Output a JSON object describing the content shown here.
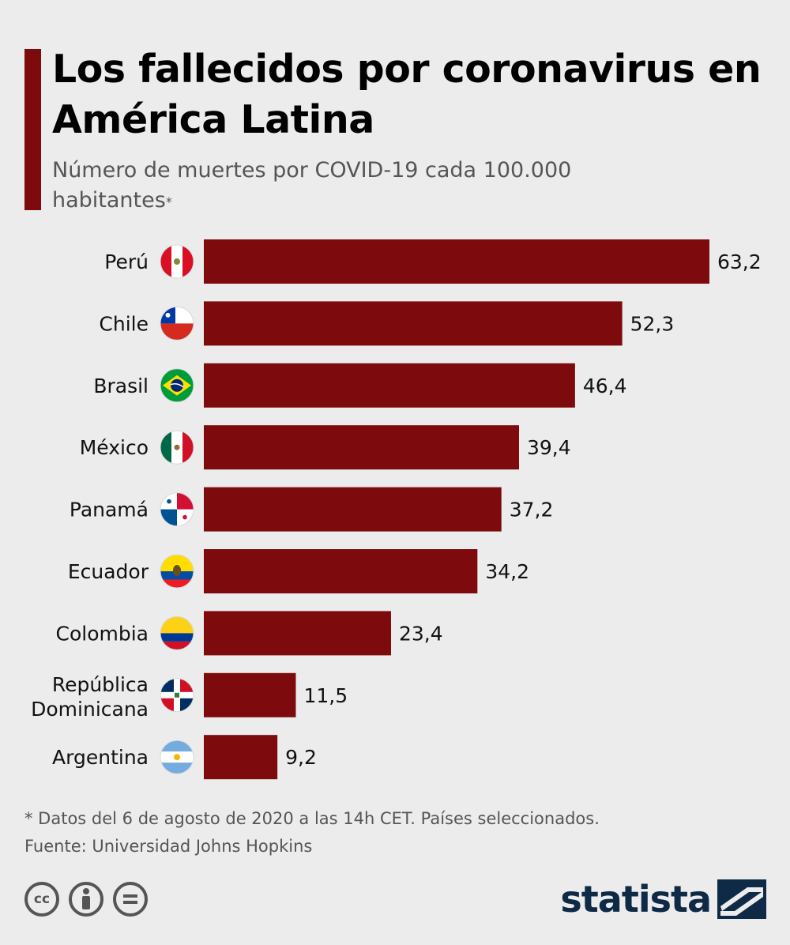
{
  "header": {
    "title": "Los fallecidos por coronavirus en América Latina",
    "subtitle": "Número de muertes por COVID-19 cada 100.000 habitantes",
    "subtitle_mark": "*"
  },
  "chart_data": {
    "type": "bar",
    "orientation": "horizontal",
    "title": "Los fallecidos por coronavirus en América Latina",
    "ylabel": "Número de muertes por COVID-19 cada 100.000 habitantes",
    "categories": [
      "Perú",
      "Chile",
      "Brasil",
      "México",
      "Panamá",
      "Ecuador",
      "Colombia",
      "República Dominicana",
      "Argentina"
    ],
    "category_lines": [
      [
        "Perú"
      ],
      [
        "Chile"
      ],
      [
        "Brasil"
      ],
      [
        "México"
      ],
      [
        "Panamá"
      ],
      [
        "Ecuador"
      ],
      [
        "Colombia"
      ],
      [
        "República",
        "Dominicana"
      ],
      [
        "Argentina"
      ]
    ],
    "values": [
      63.2,
      52.3,
      46.4,
      39.4,
      37.2,
      34.2,
      23.4,
      11.5,
      9.2
    ],
    "value_labels": [
      "63,2",
      "52,3",
      "46,4",
      "39,4",
      "37,2",
      "34,2",
      "23,4",
      "11,5",
      "9,2"
    ],
    "flags": [
      "peru-flag-icon",
      "chile-flag-icon",
      "brazil-flag-icon",
      "mexico-flag-icon",
      "panama-flag-icon",
      "ecuador-flag-icon",
      "colombia-flag-icon",
      "dominican-republic-flag-icon",
      "argentina-flag-icon"
    ],
    "xlim": [
      0,
      63.2
    ],
    "bar_color": "#7d0a0c"
  },
  "footer": {
    "note": "* Datos del 6 de agosto de 2020 a las 14h CET. Países seleccionados.",
    "source": "Fuente: Universidad Johns Hopkins",
    "license_icons": [
      "cc-icon",
      "attribution-icon",
      "no-derivatives-icon"
    ],
    "brand": "statista"
  },
  "colors": {
    "accent": "#7d0a0c",
    "background": "#ececec",
    "brand": "#0e2a47"
  }
}
